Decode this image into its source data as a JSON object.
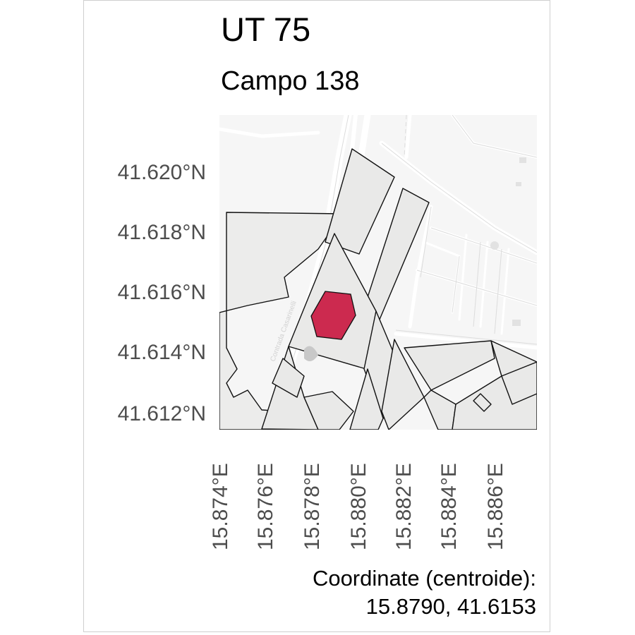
{
  "header": {
    "title": "UT 75",
    "subtitle": "Campo 138"
  },
  "axes": {
    "y_ticks": [
      "41.620°N",
      "41.618°N",
      "41.616°N",
      "41.614°N",
      "41.612°N"
    ],
    "x_ticks": [
      "15.874°E",
      "15.876°E",
      "15.878°E",
      "15.880°E",
      "15.882°E",
      "15.884°E",
      "15.886°E"
    ]
  },
  "map": {
    "road_label": "Contrada Casarinelli",
    "colors": {
      "basemap": "#f6f6f6",
      "parcel_fill": "#e9e9e8",
      "parcel_stroke": "#111111",
      "road": "#ffffff",
      "highlight": "#cc2a4f"
    }
  },
  "caption": {
    "line1": "Coordinate (centroide):",
    "line2": "15.8790, 41.6153"
  }
}
